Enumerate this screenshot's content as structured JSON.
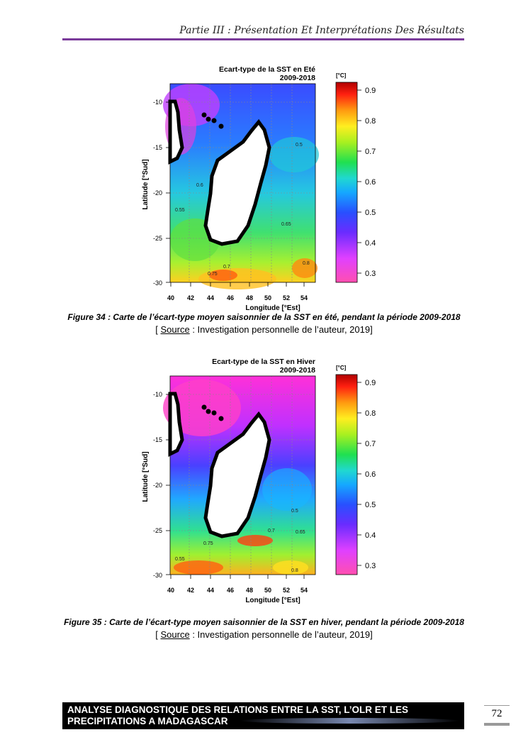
{
  "header": {
    "title": "Partie III : Présentation Et Interprétations Des Résultats"
  },
  "figures": [
    {
      "plot_title_line1": "Ecart-type de la SST en Eté",
      "plot_title_line2": "2009-2018",
      "ylabel": "Latitude [°Sud]",
      "xlabel": "Longitude [°Est]",
      "colorbar_unit": "[°C]",
      "caption": "Figure 34 : Carte de l’écart-type moyen saisonnier de la SST en été, pendant la période 2009-2018",
      "source_prefix": "[ ",
      "source_word": "Source",
      "source_rest": " : Investigation personnelle de l’auteur, 2019]",
      "contour_labels": [
        "0.5",
        "0.55",
        "0.6",
        "0.65",
        "0.7",
        "0.75",
        "0.8"
      ]
    },
    {
      "plot_title_line1": "Ecart-type de la SST en Hiver",
      "plot_title_line2": "2009-2018",
      "ylabel": "Latitude [°Sud]",
      "xlabel": "Longitude [°Est]",
      "colorbar_unit": "[°C]",
      "caption": "Figure 35 : Carte de l’écart-type moyen saisonnier de la SST en hiver, pendant la période 2009-2018",
      "source_prefix": "[ ",
      "source_word": "Source",
      "source_rest": " : Investigation personnelle de l’auteur, 2019]",
      "contour_labels": [
        "0.5",
        "0.55",
        "0.65",
        "0.7",
        "0.75",
        "0.8"
      ]
    }
  ],
  "axes": {
    "x_ticks": [
      "40",
      "42",
      "44",
      "46",
      "48",
      "50",
      "52",
      "54"
    ],
    "y_ticks": [
      "-10",
      "-15",
      "-20",
      "-25",
      "-30"
    ],
    "colorbar_ticks": [
      "0.9",
      "0.8",
      "0.7",
      "0.6",
      "0.5",
      "0.4",
      "0.3"
    ]
  },
  "footer": {
    "line1": "ANALYSE DIAGNOSTIQUE DES RELATIONS ENTRE LA SST, L’OLR ET LES",
    "line2": "PRECIPITATIONS A MADAGASCAR"
  },
  "page_number": "72"
}
